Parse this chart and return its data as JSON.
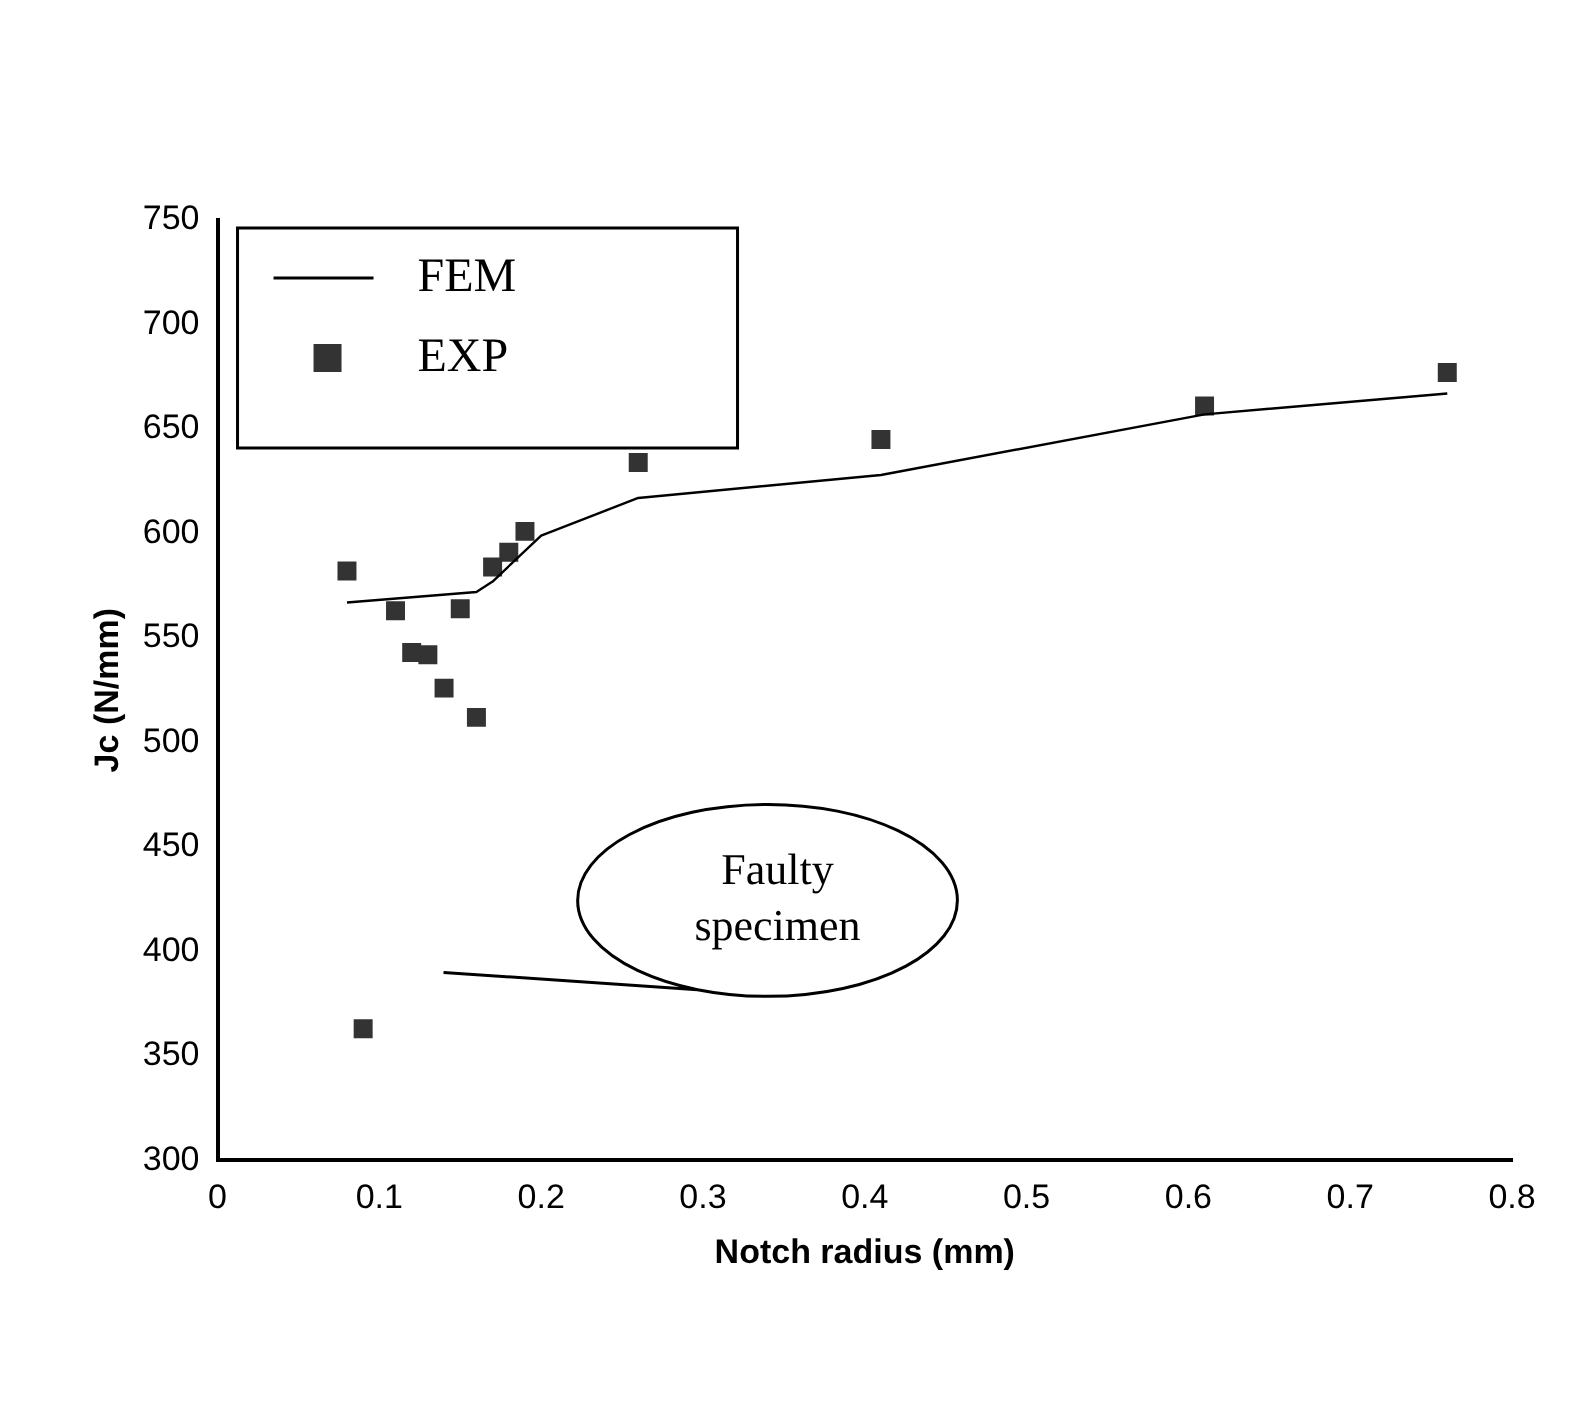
{
  "chart_data": {
    "type": "scatter",
    "xlabel": "Notch radius (mm)",
    "ylabel": "Jc (N/mm)",
    "xlim": [
      0,
      0.8
    ],
    "xticks": [
      0,
      0.1,
      0.2,
      0.3,
      0.4,
      0.5,
      0.6,
      0.7,
      0.8
    ],
    "ylim": [
      300,
      750
    ],
    "yticks": [
      300,
      350,
      400,
      450,
      500,
      550,
      600,
      650,
      700,
      750
    ],
    "grid": false,
    "legend": "top left",
    "series": [
      {
        "name": "FEM",
        "type": "line",
        "marker": "none",
        "color": "#000000",
        "x": [
          0.08,
          0.16,
          0.17,
          0.2,
          0.26,
          0.41,
          0.61,
          0.76
        ],
        "values": [
          567,
          572,
          577,
          599,
          617,
          628,
          657,
          667
        ]
      },
      {
        "name": "EXP",
        "marker": "square",
        "color": "#333333",
        "x": [
          0.08,
          0.09,
          0.11,
          0.12,
          0.13,
          0.14,
          0.15,
          0.16,
          0.17,
          0.18,
          0.19,
          0.26,
          0.41,
          0.61,
          0.76
        ],
        "values": [
          582,
          363,
          563,
          543,
          542,
          526,
          564,
          512,
          584,
          591,
          601,
          634,
          645,
          661,
          677
        ]
      }
    ],
    "annotations": [
      "Faulty specimen"
    ]
  }
}
